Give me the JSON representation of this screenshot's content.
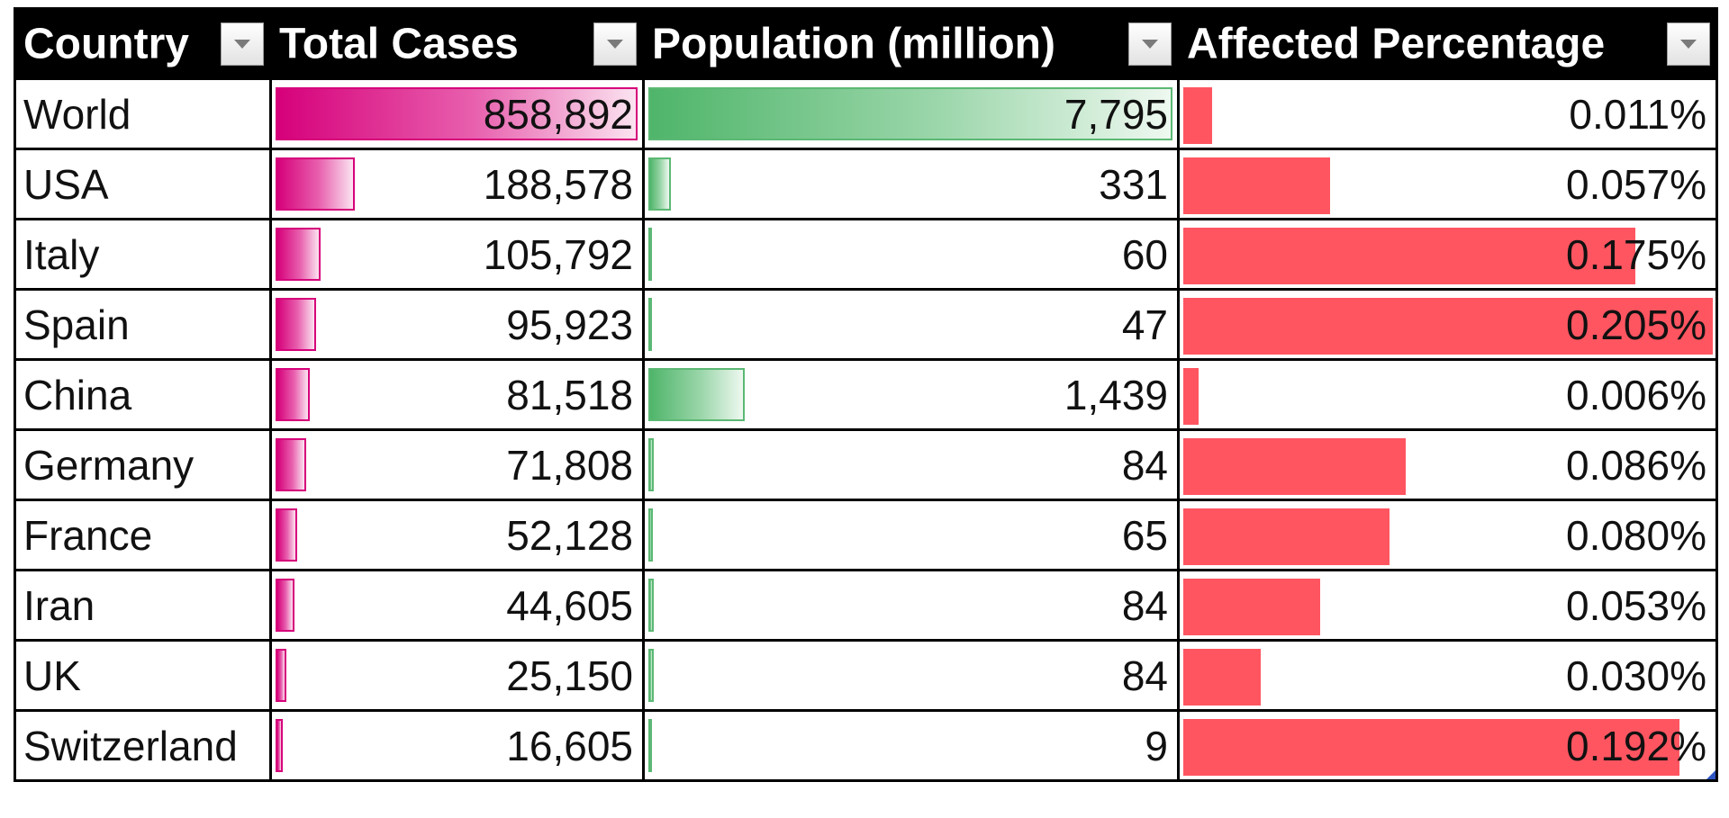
{
  "table": {
    "headers": [
      {
        "label": "Country",
        "key": "country"
      },
      {
        "label": "Total Cases",
        "key": "cases"
      },
      {
        "label": "Population (million)",
        "key": "population"
      },
      {
        "label": "Affected Percentage",
        "key": "affected"
      }
    ],
    "rows": [
      {
        "country": "World",
        "cases": "858,892",
        "population": "7,795",
        "affected": "0.011%",
        "cases_value": 858892,
        "population_value": 7795,
        "affected_value": 0.011
      },
      {
        "country": "USA",
        "cases": "188,578",
        "population": "331",
        "affected": "0.057%",
        "cases_value": 188578,
        "population_value": 331,
        "affected_value": 0.057
      },
      {
        "country": "Italy",
        "cases": "105,792",
        "population": "60",
        "affected": "0.175%",
        "cases_value": 105792,
        "population_value": 60,
        "affected_value": 0.175
      },
      {
        "country": "Spain",
        "cases": "95,923",
        "population": "47",
        "affected": "0.205%",
        "cases_value": 95923,
        "population_value": 47,
        "affected_value": 0.205
      },
      {
        "country": "China",
        "cases": "81,518",
        "population": "1,439",
        "affected": "0.006%",
        "cases_value": 81518,
        "population_value": 1439,
        "affected_value": 0.006
      },
      {
        "country": "Germany",
        "cases": "71,808",
        "population": "84",
        "affected": "0.086%",
        "cases_value": 71808,
        "population_value": 84,
        "affected_value": 0.086
      },
      {
        "country": "France",
        "cases": "52,128",
        "population": "65",
        "affected": "0.080%",
        "cases_value": 52128,
        "population_value": 65,
        "affected_value": 0.08
      },
      {
        "country": "Iran",
        "cases": "44,605",
        "population": "84",
        "affected": "0.053%",
        "cases_value": 44605,
        "population_value": 84,
        "affected_value": 0.053
      },
      {
        "country": "UK",
        "cases": "25,150",
        "population": "84",
        "affected": "0.030%",
        "cases_value": 25150,
        "population_value": 84,
        "affected_value": 0.03
      },
      {
        "country": "Switzerland",
        "cases": "16,605",
        "population": "9",
        "affected": "0.192%",
        "cases_value": 16605,
        "population_value": 9,
        "affected_value": 0.192
      }
    ]
  },
  "colors": {
    "header_bg": "#000000",
    "header_text": "#ffffff",
    "cases_bar": "#d6007a",
    "population_bar": "#4fb56a",
    "affected_bar": "#ff5561",
    "selection_handle": "#2e55c4"
  },
  "icons": {
    "filter": "filter-dropdown-icon"
  }
}
